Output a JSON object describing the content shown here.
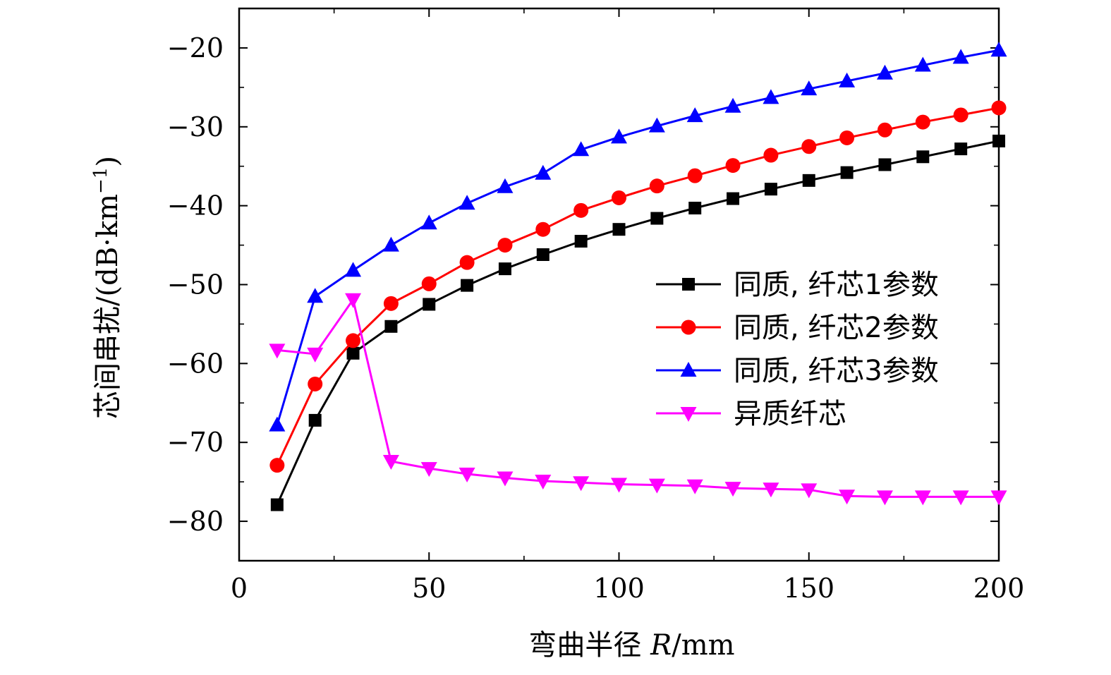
{
  "chart_data": {
    "type": "line",
    "title": "",
    "xlabel_prefix": "弯曲半径 ",
    "xlabel_var": "R",
    "xlabel_suffix": "/mm",
    "ylabel_main": "芯间串扰/(dB·km",
    "ylabel_sup": "−1",
    "ylabel_close": ")",
    "xlim": [
      0,
      200
    ],
    "ylim": [
      -85,
      -15
    ],
    "xticks": [
      0,
      50,
      100,
      150,
      200
    ],
    "yticks": [
      -20,
      -30,
      -40,
      -50,
      -60,
      -70,
      -80
    ],
    "ytick_labels": [
      "−20",
      "−30",
      "−40",
      "−50",
      "−60",
      "−70",
      "−80"
    ],
    "x": [
      10,
      20,
      30,
      40,
      50,
      60,
      70,
      80,
      90,
      100,
      110,
      120,
      130,
      140,
      150,
      160,
      170,
      180,
      190,
      200
    ],
    "legend_position": "center-right",
    "series": [
      {
        "name": "同质, 纤芯1参数",
        "color": "#000000",
        "marker": "square",
        "values": [
          -77.9,
          -67.2,
          -58.7,
          -55.3,
          -52.5,
          -50.1,
          -48.0,
          -46.2,
          -44.5,
          -43.0,
          -41.6,
          -40.3,
          -39.1,
          -37.9,
          -36.8,
          -35.8,
          -34.8,
          -33.8,
          -32.8,
          -31.8
        ]
      },
      {
        "name": "同质, 纤芯2参数",
        "color": "#ff0000",
        "marker": "circle",
        "values": [
          -72.9,
          -62.6,
          -57.1,
          -52.4,
          -49.9,
          -47.2,
          -45.0,
          -43.0,
          -40.6,
          -39.0,
          -37.5,
          -36.2,
          -34.9,
          -33.6,
          -32.5,
          -31.4,
          -30.4,
          -29.4,
          -28.5,
          -27.6
        ]
      },
      {
        "name": "同质, 纤芯3参数",
        "color": "#0000ff",
        "marker": "triangle-up",
        "values": [
          -67.8,
          -51.5,
          -48.2,
          -45.0,
          -42.2,
          -39.7,
          -37.6,
          -35.9,
          -32.9,
          -31.3,
          -29.9,
          -28.6,
          -27.4,
          -26.3,
          -25.2,
          -24.2,
          -23.2,
          -22.2,
          -21.2,
          -20.3
        ]
      },
      {
        "name": "异质纤芯",
        "color": "#ff00ff",
        "marker": "triangle-down",
        "values": [
          -58.3,
          -58.8,
          -51.9,
          -72.4,
          -73.3,
          -74.0,
          -74.5,
          -74.9,
          -75.1,
          -75.3,
          -75.4,
          -75.5,
          -75.8,
          -75.9,
          -76.0,
          -76.8,
          -76.9,
          -76.9,
          -76.9,
          -76.9
        ]
      }
    ]
  }
}
